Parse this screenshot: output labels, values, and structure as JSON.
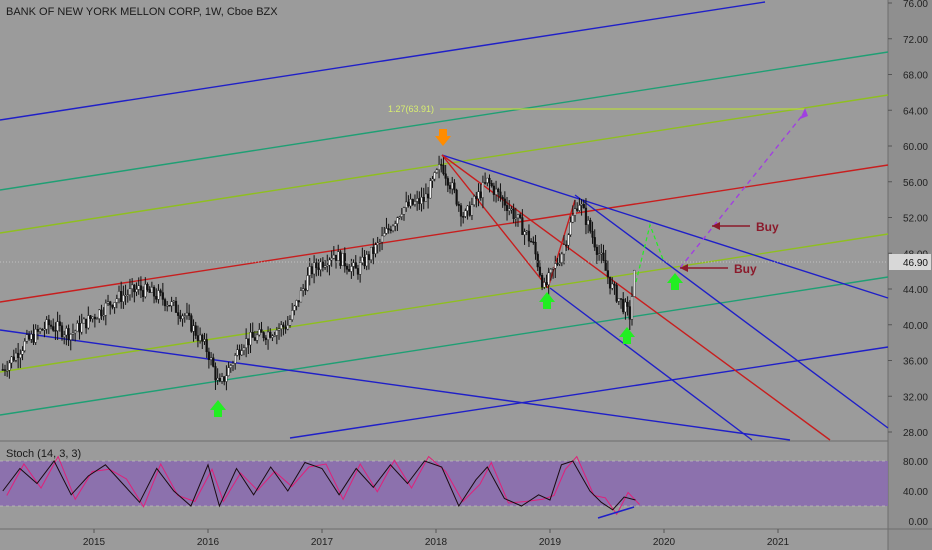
{
  "header": {
    "title": "BANK OF NEW YORK MELLON CORP, 1W, Cboe BZX"
  },
  "stoch": {
    "label": "Stoch (14, 3, 3)",
    "ticks": [
      "80.00",
      "40.00",
      "0.00"
    ]
  },
  "colors": {
    "background": "#9b9b9b",
    "blue_channel": "#1f1fc8",
    "teal_channel": "#1f9f74",
    "olive_channel": "#8fbf1f",
    "red_channel": "#c81e1e",
    "fib_line": "#b8d840",
    "stoch_band": "#8a6ab0",
    "stoch_line": "#e0207a",
    "buy_text": "#8b1a2b",
    "up_arrow": "#22ee22",
    "down_arrow": "#ff8c00",
    "target_dash": "#a040e0",
    "price_box": "#d8d8d8"
  },
  "chart_data": {
    "type": "candlestick",
    "title": "BANK OF NEW YORK MELLON CORP, 1W, Cboe BZX",
    "price_axis": {
      "ticks": [
        "76.00",
        "72.00",
        "68.00",
        "64.00",
        "60.00",
        "56.00",
        "52.00",
        "48.00",
        "44.00",
        "40.00",
        "36.00",
        "32.00",
        "28.00"
      ],
      "current_price": "46.90",
      "ylim": [
        27,
        77
      ]
    },
    "x_axis": {
      "ticks": [
        "2015",
        "2016",
        "2017",
        "2018",
        "2019",
        "2020",
        "2021"
      ]
    },
    "price_path": [
      [
        2014.2,
        35.0
      ],
      [
        2014.4,
        38.0
      ],
      [
        2014.6,
        40.0
      ],
      [
        2014.8,
        39.0
      ],
      [
        2015.0,
        41.0
      ],
      [
        2015.2,
        43.0
      ],
      [
        2015.4,
        44.0
      ],
      [
        2015.6,
        43.0
      ],
      [
        2015.8,
        41.0
      ],
      [
        2016.0,
        37.0
      ],
      [
        2016.1,
        33.0
      ],
      [
        2016.3,
        38.0
      ],
      [
        2016.5,
        39.0
      ],
      [
        2016.7,
        40.0
      ],
      [
        2016.9,
        46.0
      ],
      [
        2017.1,
        48.0
      ],
      [
        2017.3,
        46.0
      ],
      [
        2017.5,
        49.0
      ],
      [
        2017.7,
        53.0
      ],
      [
        2017.9,
        54.0
      ],
      [
        2018.05,
        58.0
      ],
      [
        2018.25,
        52.0
      ],
      [
        2018.45,
        56.0
      ],
      [
        2018.65,
        53.0
      ],
      [
        2018.85,
        49.0
      ],
      [
        2018.95,
        44.0
      ],
      [
        2019.1,
        48.0
      ],
      [
        2019.25,
        54.0
      ],
      [
        2019.4,
        49.0
      ],
      [
        2019.55,
        44.0
      ],
      [
        2019.7,
        41.0
      ],
      [
        2019.75,
        46.9
      ]
    ],
    "annotations": {
      "fib_label": "1.27(63.91)",
      "buy_labels": [
        "Buy",
        "Buy"
      ]
    },
    "stoch_path": [
      [
        2014.2,
        40
      ],
      [
        2014.35,
        70
      ],
      [
        2014.5,
        50
      ],
      [
        2014.65,
        80
      ],
      [
        2014.8,
        35
      ],
      [
        2014.95,
        60
      ],
      [
        2015.1,
        75
      ],
      [
        2015.25,
        50
      ],
      [
        2015.4,
        25
      ],
      [
        2015.55,
        70
      ],
      [
        2015.7,
        40
      ],
      [
        2015.85,
        20
      ],
      [
        2016.0,
        75
      ],
      [
        2016.1,
        20
      ],
      [
        2016.25,
        70
      ],
      [
        2016.4,
        35
      ],
      [
        2016.55,
        72
      ],
      [
        2016.7,
        40
      ],
      [
        2016.85,
        78
      ],
      [
        2017.0,
        70
      ],
      [
        2017.15,
        35
      ],
      [
        2017.3,
        70
      ],
      [
        2017.45,
        45
      ],
      [
        2017.6,
        75
      ],
      [
        2017.75,
        50
      ],
      [
        2017.9,
        80
      ],
      [
        2018.05,
        72
      ],
      [
        2018.2,
        20
      ],
      [
        2018.35,
        55
      ],
      [
        2018.45,
        72
      ],
      [
        2018.6,
        30
      ],
      [
        2018.75,
        20
      ],
      [
        2018.9,
        35
      ],
      [
        2019.0,
        28
      ],
      [
        2019.1,
        75
      ],
      [
        2019.2,
        80
      ],
      [
        2019.35,
        40
      ],
      [
        2019.45,
        25
      ],
      [
        2019.55,
        15
      ],
      [
        2019.65,
        32
      ],
      [
        2019.75,
        28
      ]
    ]
  }
}
